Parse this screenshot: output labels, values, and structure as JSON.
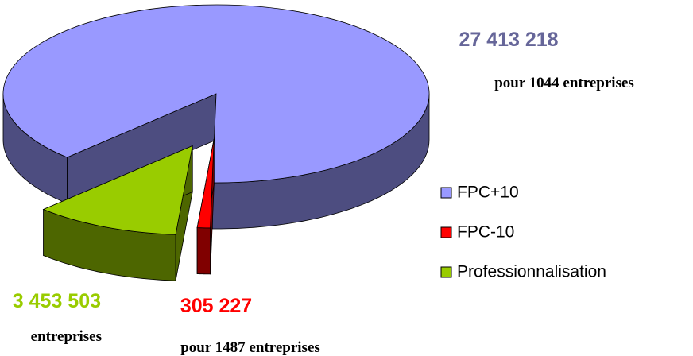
{
  "chart_data": {
    "type": "pie3d",
    "categories": [
      "FPC+10",
      "FPC-10",
      "Professionnalisation"
    ],
    "values": [
      27413218,
      305227,
      3453503
    ],
    "value_labels": [
      "27 413 218",
      "305 227",
      "3 453 503"
    ],
    "colors": [
      "#9999ff",
      "#ff0000",
      "#99cc00"
    ],
    "annotations": [
      "pour 1044 entreprises",
      "pour 1487 entreprises",
      "entreprises"
    ],
    "legend": "right"
  }
}
